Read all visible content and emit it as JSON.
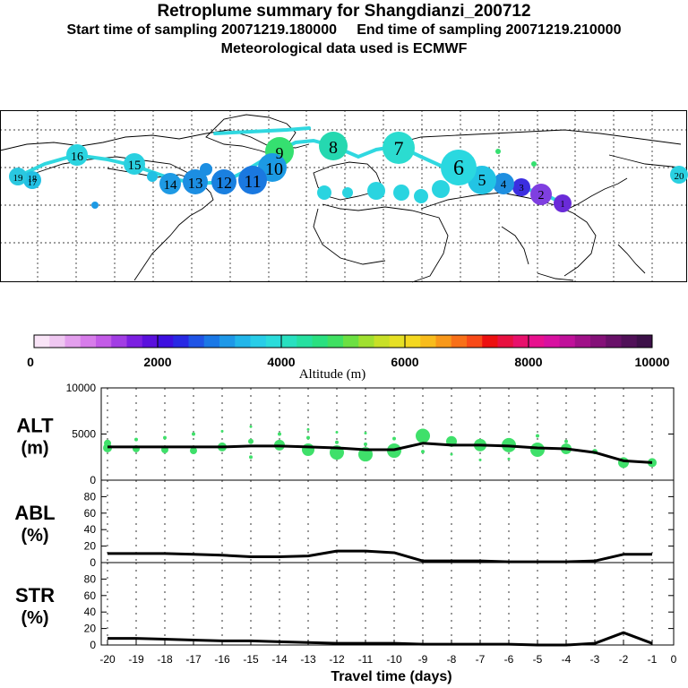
{
  "header": {
    "title": "Retroplume summary for Shangdianzi_200712",
    "sampling_line": "Start time of sampling 20071219.180000     End time of sampling 20071219.210000",
    "met_line": "Meteorological data used is ECMWF"
  },
  "map": {
    "plume_markers": [
      {
        "label": "1",
        "day": -1,
        "color": "#6a2bd8"
      },
      {
        "label": "2",
        "day": -2,
        "color": "#7f3fe0"
      },
      {
        "label": "3",
        "day": -3,
        "color": "#3c2ee0"
      },
      {
        "label": "4",
        "day": -4,
        "color": "#1f8fe0"
      },
      {
        "label": "5",
        "day": -5,
        "color": "#22c4e4"
      },
      {
        "label": "6",
        "day": -6,
        "color": "#2ad8e0"
      },
      {
        "label": "7",
        "day": -7,
        "color": "#2bdcd0"
      },
      {
        "label": "8",
        "day": -8,
        "color": "#25d8b0"
      },
      {
        "label": "9",
        "day": -9,
        "color": "#35e070"
      },
      {
        "label": "10",
        "day": -10,
        "color": "#1c9ae4"
      },
      {
        "label": "11",
        "day": -11,
        "color": "#1a78e0"
      },
      {
        "label": "12",
        "day": -12,
        "color": "#1a80e0"
      },
      {
        "label": "13",
        "day": -13,
        "color": "#1c8ee2"
      },
      {
        "label": "14",
        "day": -14,
        "color": "#1e9ae4"
      },
      {
        "label": "15",
        "day": -15,
        "color": "#2ad0e0"
      },
      {
        "label": "16",
        "day": -16,
        "color": "#2ad4e0"
      },
      {
        "label": "17",
        "day": -17,
        "color": "#22c0e4"
      },
      {
        "label": "18",
        "day": -18,
        "color": "#22b8e4"
      },
      {
        "label": "19",
        "day": -19,
        "color": "#2ac8e0"
      },
      {
        "label": "20",
        "day": -20,
        "color": "#2ad0e0"
      }
    ]
  },
  "colorbar": {
    "title": "Altitude (m)",
    "ticks": [
      "0",
      "2000",
      "4000",
      "6000",
      "8000",
      "10000"
    ],
    "colors": [
      "#f9e4f7",
      "#efc7f1",
      "#e39fed",
      "#d77cea",
      "#c35be7",
      "#a23de4",
      "#7c1fe1",
      "#5a10dd",
      "#3d0fe0",
      "#2829e4",
      "#1f54e6",
      "#1a78e6",
      "#1e98e8",
      "#22b6ea",
      "#28cde8",
      "#2bdcdb",
      "#28e0c0",
      "#26e0a0",
      "#2ae080",
      "#40e062",
      "#6ce042",
      "#a0e030",
      "#c8e028",
      "#e6e024",
      "#f4d820",
      "#f8bc1c",
      "#f8981a",
      "#f87018",
      "#f84a18",
      "#ec1010",
      "#e81040",
      "#e8106c",
      "#e8108e",
      "#d810a0",
      "#c0109a",
      "#a01088",
      "#841078",
      "#681068",
      "#501058",
      "#3c1048"
    ]
  },
  "chart_data": [
    {
      "type": "line",
      "panel": "ALT",
      "ylabel_line1": "ALT",
      "ylabel_line2": "(m)",
      "ylim": [
        0,
        10000
      ],
      "ytick_labels": [
        "10000",
        "5000",
        "0"
      ],
      "x": [
        -20,
        -19,
        -18,
        -17,
        -16,
        -15,
        -14,
        -13,
        -12,
        -11,
        -10,
        -9,
        -8,
        -7,
        -6,
        -5,
        -4,
        -3,
        -2,
        -1
      ],
      "series": [
        {
          "name": "mean altitude",
          "values": [
            3600,
            3600,
            3600,
            3600,
            3600,
            3700,
            3700,
            3600,
            3500,
            3300,
            3300,
            4000,
            3800,
            3800,
            3700,
            3500,
            3400,
            3000,
            2100,
            1900
          ]
        }
      ],
      "scatter": [
        {
          "x": -20,
          "y": 4000,
          "r": 4
        },
        {
          "x": -20,
          "y": 3500,
          "r": 5
        },
        {
          "x": -19,
          "y": 4400,
          "r": 2
        },
        {
          "x": -19,
          "y": 3400,
          "r": 4
        },
        {
          "x": -18,
          "y": 4600,
          "r": 2
        },
        {
          "x": -18,
          "y": 3300,
          "r": 4
        },
        {
          "x": -17,
          "y": 5000,
          "r": 2
        },
        {
          "x": -17,
          "y": 3200,
          "r": 4
        },
        {
          "x": -16,
          "y": 5300,
          "r": 1.5
        },
        {
          "x": -16,
          "y": 3600,
          "r": 5
        },
        {
          "x": -15,
          "y": 5800,
          "r": 1.5
        },
        {
          "x": -15,
          "y": 4200,
          "r": 3
        },
        {
          "x": -15,
          "y": 2500,
          "r": 2
        },
        {
          "x": -14,
          "y": 5000,
          "r": 2
        },
        {
          "x": -14,
          "y": 3800,
          "r": 6
        },
        {
          "x": -13,
          "y": 5500,
          "r": 1.5
        },
        {
          "x": -13,
          "y": 4600,
          "r": 2
        },
        {
          "x": -13,
          "y": 3300,
          "r": 7
        },
        {
          "x": -12,
          "y": 5200,
          "r": 1.5
        },
        {
          "x": -12,
          "y": 4100,
          "r": 2
        },
        {
          "x": -12,
          "y": 3000,
          "r": 8
        },
        {
          "x": -11,
          "y": 5100,
          "r": 1.5
        },
        {
          "x": -11,
          "y": 3900,
          "r": 2
        },
        {
          "x": -11,
          "y": 2800,
          "r": 8
        },
        {
          "x": -10,
          "y": 4500,
          "r": 2
        },
        {
          "x": -10,
          "y": 3200,
          "r": 8
        },
        {
          "x": -9,
          "y": 4800,
          "r": 8
        },
        {
          "x": -9,
          "y": 3100,
          "r": 2
        },
        {
          "x": -8,
          "y": 4200,
          "r": 6
        },
        {
          "x": -8,
          "y": 2800,
          "r": 1.5
        },
        {
          "x": -7,
          "y": 3800,
          "r": 7
        },
        {
          "x": -7,
          "y": 2200,
          "r": 1.5
        },
        {
          "x": -6,
          "y": 3800,
          "r": 8
        },
        {
          "x": -6,
          "y": 2300,
          "r": 1.5
        },
        {
          "x": -5,
          "y": 4800,
          "r": 2
        },
        {
          "x": -5,
          "y": 3300,
          "r": 8
        },
        {
          "x": -4,
          "y": 4200,
          "r": 2
        },
        {
          "x": -4,
          "y": 3400,
          "r": 6
        },
        {
          "x": -3,
          "y": 3100,
          "r": 3
        },
        {
          "x": -2,
          "y": 1900,
          "r": 6
        },
        {
          "x": -1,
          "y": 1900,
          "r": 5
        }
      ]
    },
    {
      "type": "line",
      "panel": "ABL",
      "ylabel_line1": "ABL",
      "ylabel_line2": "(%)",
      "ylim": [
        0,
        100
      ],
      "ytick_labels": [
        "80",
        "60",
        "40",
        "20",
        "0"
      ],
      "x": [
        -20,
        -19,
        -18,
        -17,
        -16,
        -15,
        -14,
        -13,
        -12,
        -11,
        -10,
        -9,
        -8,
        -7,
        -6,
        -5,
        -4,
        -3,
        -2,
        -1
      ],
      "series": [
        {
          "name": "fraction in ABL",
          "values": [
            11,
            11,
            11,
            10,
            9,
            7,
            7,
            8,
            14,
            14,
            12,
            2,
            2,
            2,
            1,
            1,
            1,
            2,
            10,
            10
          ]
        }
      ]
    },
    {
      "type": "line",
      "panel": "STR",
      "ylabel_line1": "STR",
      "ylabel_line2": "(%)",
      "ylim": [
        0,
        100
      ],
      "ytick_labels": [
        "80",
        "60",
        "40",
        "20",
        "0"
      ],
      "x": [
        -20,
        -19,
        -18,
        -17,
        -16,
        -15,
        -14,
        -13,
        -12,
        -11,
        -10,
        -9,
        -8,
        -7,
        -6,
        -5,
        -4,
        -3,
        -2,
        -1
      ],
      "series": [
        {
          "name": "fraction in stratosphere",
          "values": [
            8,
            8,
            7,
            6,
            5,
            5,
            4,
            3,
            2,
            2,
            2,
            1,
            1,
            1,
            1,
            0,
            0,
            2,
            15,
            2
          ]
        }
      ],
      "xlabel": "Travel time (days)",
      "xtick_labels": [
        "-20",
        "-19",
        "-18",
        "-17",
        "-16",
        "-15",
        "-14",
        "-13",
        "-12",
        "-11",
        "-10",
        "-9",
        "-8",
        "-7",
        "-6",
        "-5",
        "-4",
        "-3",
        "-2",
        "-1",
        "0"
      ]
    }
  ]
}
